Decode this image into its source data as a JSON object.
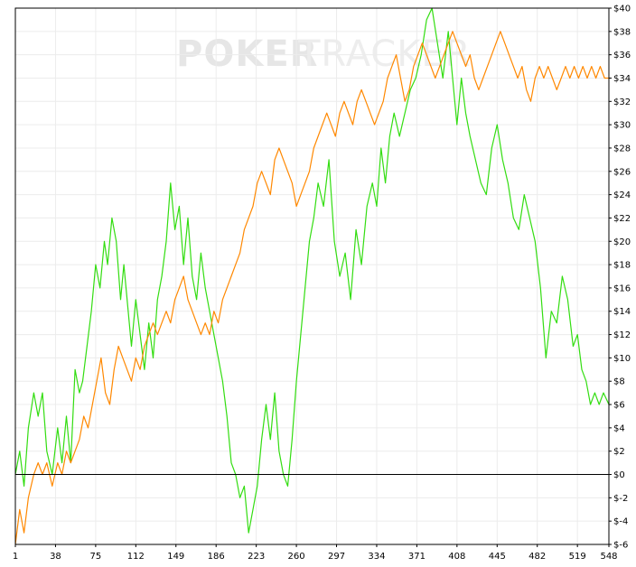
{
  "watermark": {
    "part1": "POKER",
    "part2": "TRACKER"
  },
  "chart_data": {
    "type": "line",
    "title": "",
    "xlabel": "",
    "ylabel": "",
    "xlim": [
      1,
      548
    ],
    "ylim": [
      -6,
      40
    ],
    "grid": true,
    "legend": "none",
    "x_ticks": [
      1,
      38,
      75,
      112,
      149,
      186,
      223,
      260,
      297,
      334,
      371,
      408,
      445,
      482,
      519,
      548
    ],
    "y_ticks": [
      -6,
      -4,
      -2,
      0,
      2,
      4,
      6,
      8,
      10,
      12,
      14,
      16,
      18,
      20,
      22,
      24,
      26,
      28,
      30,
      32,
      34,
      36,
      38,
      40
    ],
    "y_tick_labels": [
      "$-6",
      "$-4",
      "$-2",
      "$0",
      "$2",
      "$4",
      "$6",
      "$8",
      "$10",
      "$12",
      "$14",
      "$16",
      "$18",
      "$20",
      "$22",
      "$24",
      "$26",
      "$28",
      "$30",
      "$32",
      "$34",
      "$36",
      "$38",
      "$40"
    ],
    "series": [
      {
        "color": "#33dd11",
        "x": [
          1,
          5,
          9,
          13,
          18,
          22,
          26,
          30,
          35,
          40,
          44,
          48,
          52,
          56,
          60,
          63,
          67,
          71,
          75,
          79,
          83,
          86,
          90,
          94,
          98,
          101,
          105,
          108,
          112,
          116,
          120,
          124,
          128,
          132,
          136,
          140,
          144,
          148,
          152,
          156,
          160,
          164,
          168,
          172,
          176,
          180,
          184,
          188,
          192,
          196,
          200,
          204,
          208,
          212,
          216,
          220,
          224,
          228,
          232,
          236,
          240,
          244,
          248,
          252,
          256,
          260,
          264,
          268,
          272,
          276,
          280,
          285,
          290,
          295,
          300,
          305,
          310,
          315,
          320,
          325,
          330,
          334,
          338,
          342,
          346,
          350,
          355,
          360,
          365,
          370,
          375,
          380,
          385,
          390,
          395,
          400,
          405,
          408,
          412,
          416,
          420,
          425,
          430,
          435,
          440,
          445,
          450,
          455,
          460,
          465,
          470,
          475,
          480,
          485,
          490,
          495,
          500,
          505,
          510,
          515,
          519,
          523,
          527,
          531,
          535,
          539,
          543,
          548
        ],
        "y": [
          0,
          2,
          -1,
          4,
          7,
          5,
          7,
          2,
          0,
          4,
          1,
          5,
          1,
          9,
          7,
          8,
          11,
          14,
          18,
          16,
          20,
          18,
          22,
          20,
          15,
          18,
          14,
          11,
          15,
          12,
          9,
          13,
          10,
          15,
          17,
          20,
          25,
          21,
          23,
          18,
          22,
          17,
          15,
          19,
          16,
          14,
          12,
          10,
          8,
          5,
          1,
          0,
          -2,
          -1,
          -5,
          -3,
          -1,
          3,
          6,
          3,
          7,
          2,
          0,
          -1,
          3,
          8,
          12,
          16,
          20,
          22,
          25,
          23,
          27,
          20,
          17,
          19,
          15,
          21,
          18,
          23,
          25,
          23,
          28,
          25,
          29,
          31,
          29,
          31,
          33,
          34,
          36,
          39,
          40,
          37,
          34,
          38,
          33,
          30,
          34,
          31,
          29,
          27,
          25,
          24,
          28,
          30,
          27,
          25,
          22,
          21,
          24,
          22,
          20,
          16,
          10,
          14,
          13,
          17,
          15,
          11,
          12,
          9,
          8,
          6,
          7,
          6,
          7,
          6
        ],
        "_note": ""
      },
      {
        "color": "#ff8800",
        "x": [
          1,
          5,
          9,
          13,
          18,
          22,
          26,
          30,
          35,
          40,
          44,
          48,
          52,
          56,
          60,
          64,
          68,
          72,
          76,
          80,
          84,
          88,
          92,
          96,
          100,
          104,
          108,
          112,
          116,
          120,
          124,
          128,
          132,
          136,
          140,
          144,
          148,
          152,
          156,
          160,
          164,
          168,
          172,
          176,
          180,
          184,
          188,
          192,
          196,
          200,
          204,
          208,
          212,
          216,
          220,
          224,
          228,
          232,
          236,
          240,
          244,
          248,
          252,
          256,
          260,
          264,
          268,
          272,
          276,
          280,
          284,
          288,
          292,
          296,
          300,
          304,
          308,
          312,
          316,
          320,
          324,
          328,
          332,
          336,
          340,
          344,
          348,
          352,
          356,
          360,
          364,
          368,
          372,
          376,
          380,
          384,
          388,
          392,
          396,
          400,
          404,
          408,
          412,
          416,
          420,
          424,
          428,
          432,
          436,
          440,
          444,
          448,
          452,
          456,
          460,
          464,
          468,
          472,
          476,
          480,
          484,
          488,
          492,
          496,
          500,
          504,
          508,
          512,
          516,
          520,
          524,
          528,
          532,
          536,
          540,
          544,
          548
        ],
        "y": [
          -6,
          -3,
          -5,
          -2,
          0,
          1,
          0,
          1,
          -1,
          1,
          0,
          2,
          1,
          2,
          3,
          5,
          4,
          6,
          8,
          10,
          7,
          6,
          9,
          11,
          10,
          9,
          8,
          10,
          9,
          11,
          12,
          13,
          12,
          13,
          14,
          13,
          15,
          16,
          17,
          15,
          14,
          13,
          12,
          13,
          12,
          14,
          13,
          15,
          16,
          17,
          18,
          19,
          21,
          22,
          23,
          25,
          26,
          25,
          24,
          27,
          28,
          27,
          26,
          25,
          23,
          24,
          25,
          26,
          28,
          29,
          30,
          31,
          30,
          29,
          31,
          32,
          31,
          30,
          32,
          33,
          32,
          31,
          30,
          31,
          32,
          34,
          35,
          36,
          34,
          32,
          33,
          35,
          36,
          37,
          36,
          35,
          34,
          35,
          36,
          37,
          38,
          37,
          36,
          35,
          36,
          34,
          33,
          34,
          35,
          36,
          37,
          38,
          37,
          36,
          35,
          34,
          35,
          33,
          32,
          34,
          35,
          34,
          35,
          34,
          33,
          34,
          35,
          34,
          35,
          34,
          35,
          34,
          35,
          34,
          35,
          34,
          34
        ],
        "_note": ""
      }
    ]
  }
}
